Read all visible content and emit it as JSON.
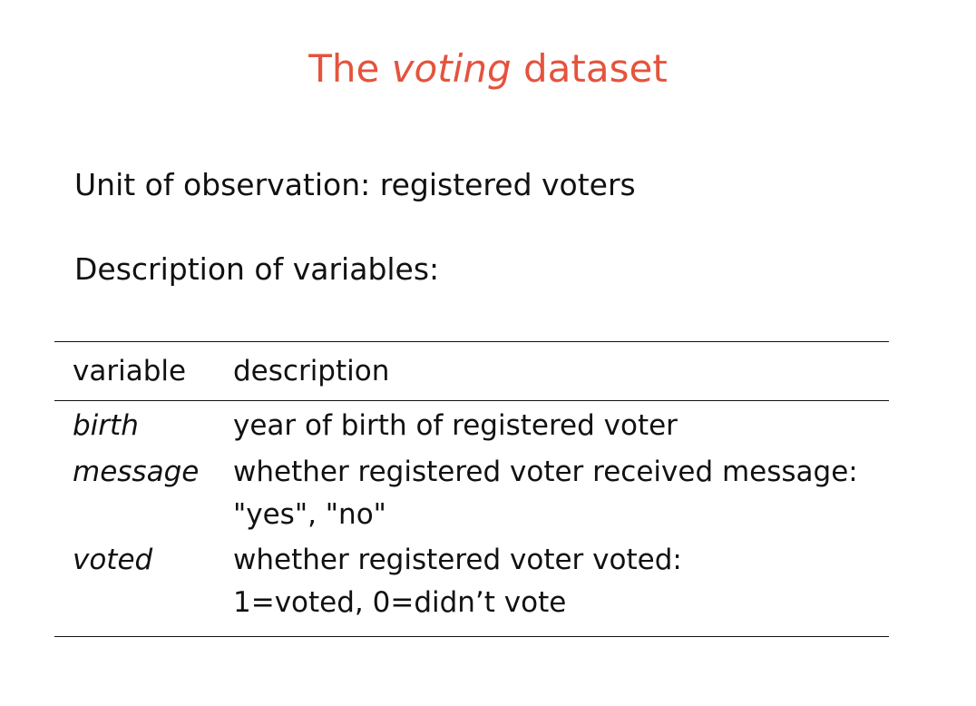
{
  "slide": {
    "title_prefix": "The",
    "title_italic": "voting",
    "title_suffix": "dataset",
    "unit_of_observation": "Unit of observation: registered voters",
    "description_heading": "Description of variables:"
  },
  "table": {
    "headers": [
      "variable",
      "description"
    ],
    "rows": [
      {
        "variable": "birth",
        "description_lines": [
          "year of birth of registered voter"
        ]
      },
      {
        "variable": "message",
        "description_lines": [
          "whether registered voter received message:",
          "\"yes\", \"no\""
        ]
      },
      {
        "variable": "voted",
        "description_lines": [
          "whether registered voter voted:",
          "1=voted, 0=didn’t vote"
        ]
      }
    ]
  },
  "colors": {
    "title": "#e5533d",
    "text": "#111111",
    "background": "#ffffff"
  }
}
